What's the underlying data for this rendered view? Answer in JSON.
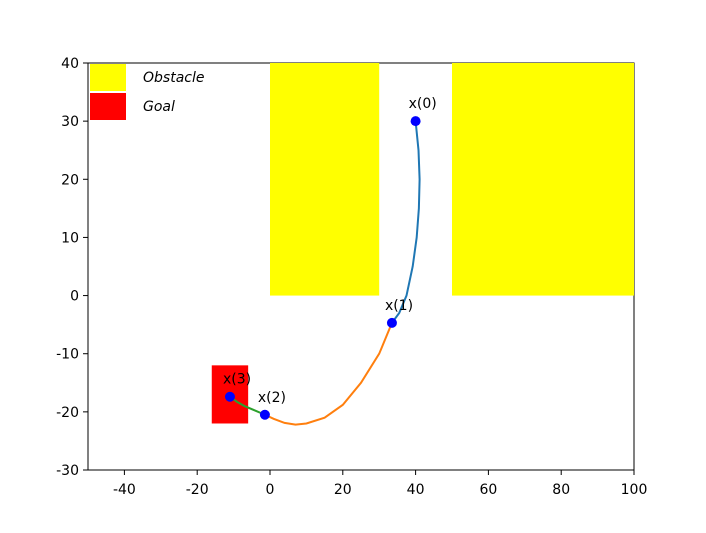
{
  "chart_data": {
    "type": "line",
    "xlim": [
      -50,
      100
    ],
    "ylim": [
      -30,
      40
    ],
    "xticks": [
      -40,
      -20,
      0,
      20,
      40,
      60,
      80,
      100
    ],
    "yticks": [
      -30,
      -20,
      -10,
      0,
      10,
      20,
      30,
      40
    ],
    "legend_loc": "upper left",
    "regions": [
      {
        "name": "Obstacle",
        "color": "#ffff00",
        "rects": [
          {
            "x": [
              0,
              30
            ],
            "y": [
              0,
              40
            ]
          },
          {
            "x": [
              50,
              100
            ],
            "y": [
              0,
              40
            ]
          }
        ]
      },
      {
        "name": "Goal",
        "color": "#ff0000",
        "rects": [
          {
            "x": [
              -16,
              -6
            ],
            "y": [
              -22,
              -12
            ]
          }
        ]
      }
    ],
    "series": [
      {
        "color": "#1f77b4",
        "x": [
          40,
          40.8,
          41.1,
          40.9,
          40.3,
          39.2,
          37.5,
          35.5,
          33.5
        ],
        "y": [
          30,
          25,
          20,
          15,
          10,
          5,
          0,
          -3,
          -4.7
        ]
      },
      {
        "color": "#ff7f0e",
        "x": [
          33.5,
          30,
          25,
          20,
          15,
          10,
          7,
          4,
          1,
          -1.4
        ],
        "y": [
          -4.7,
          -10,
          -15,
          -18.8,
          -21,
          -22,
          -22.2,
          -21.9,
          -21.2,
          -20.5
        ]
      },
      {
        "color": "#2ca02c",
        "x": [
          -1.4,
          -4,
          -7,
          -9,
          -11
        ],
        "y": [
          -20.5,
          -19.8,
          -19,
          -18.3,
          -17.4
        ]
      }
    ],
    "points": {
      "color": "#0000ff",
      "x": [
        40,
        33.5,
        -1.4,
        -11
      ],
      "y": [
        30,
        -4.7,
        -20.5,
        -17.4
      ],
      "labels": [
        "x(0)",
        "x(1)",
        "x(2)",
        "x(3)"
      ]
    }
  }
}
